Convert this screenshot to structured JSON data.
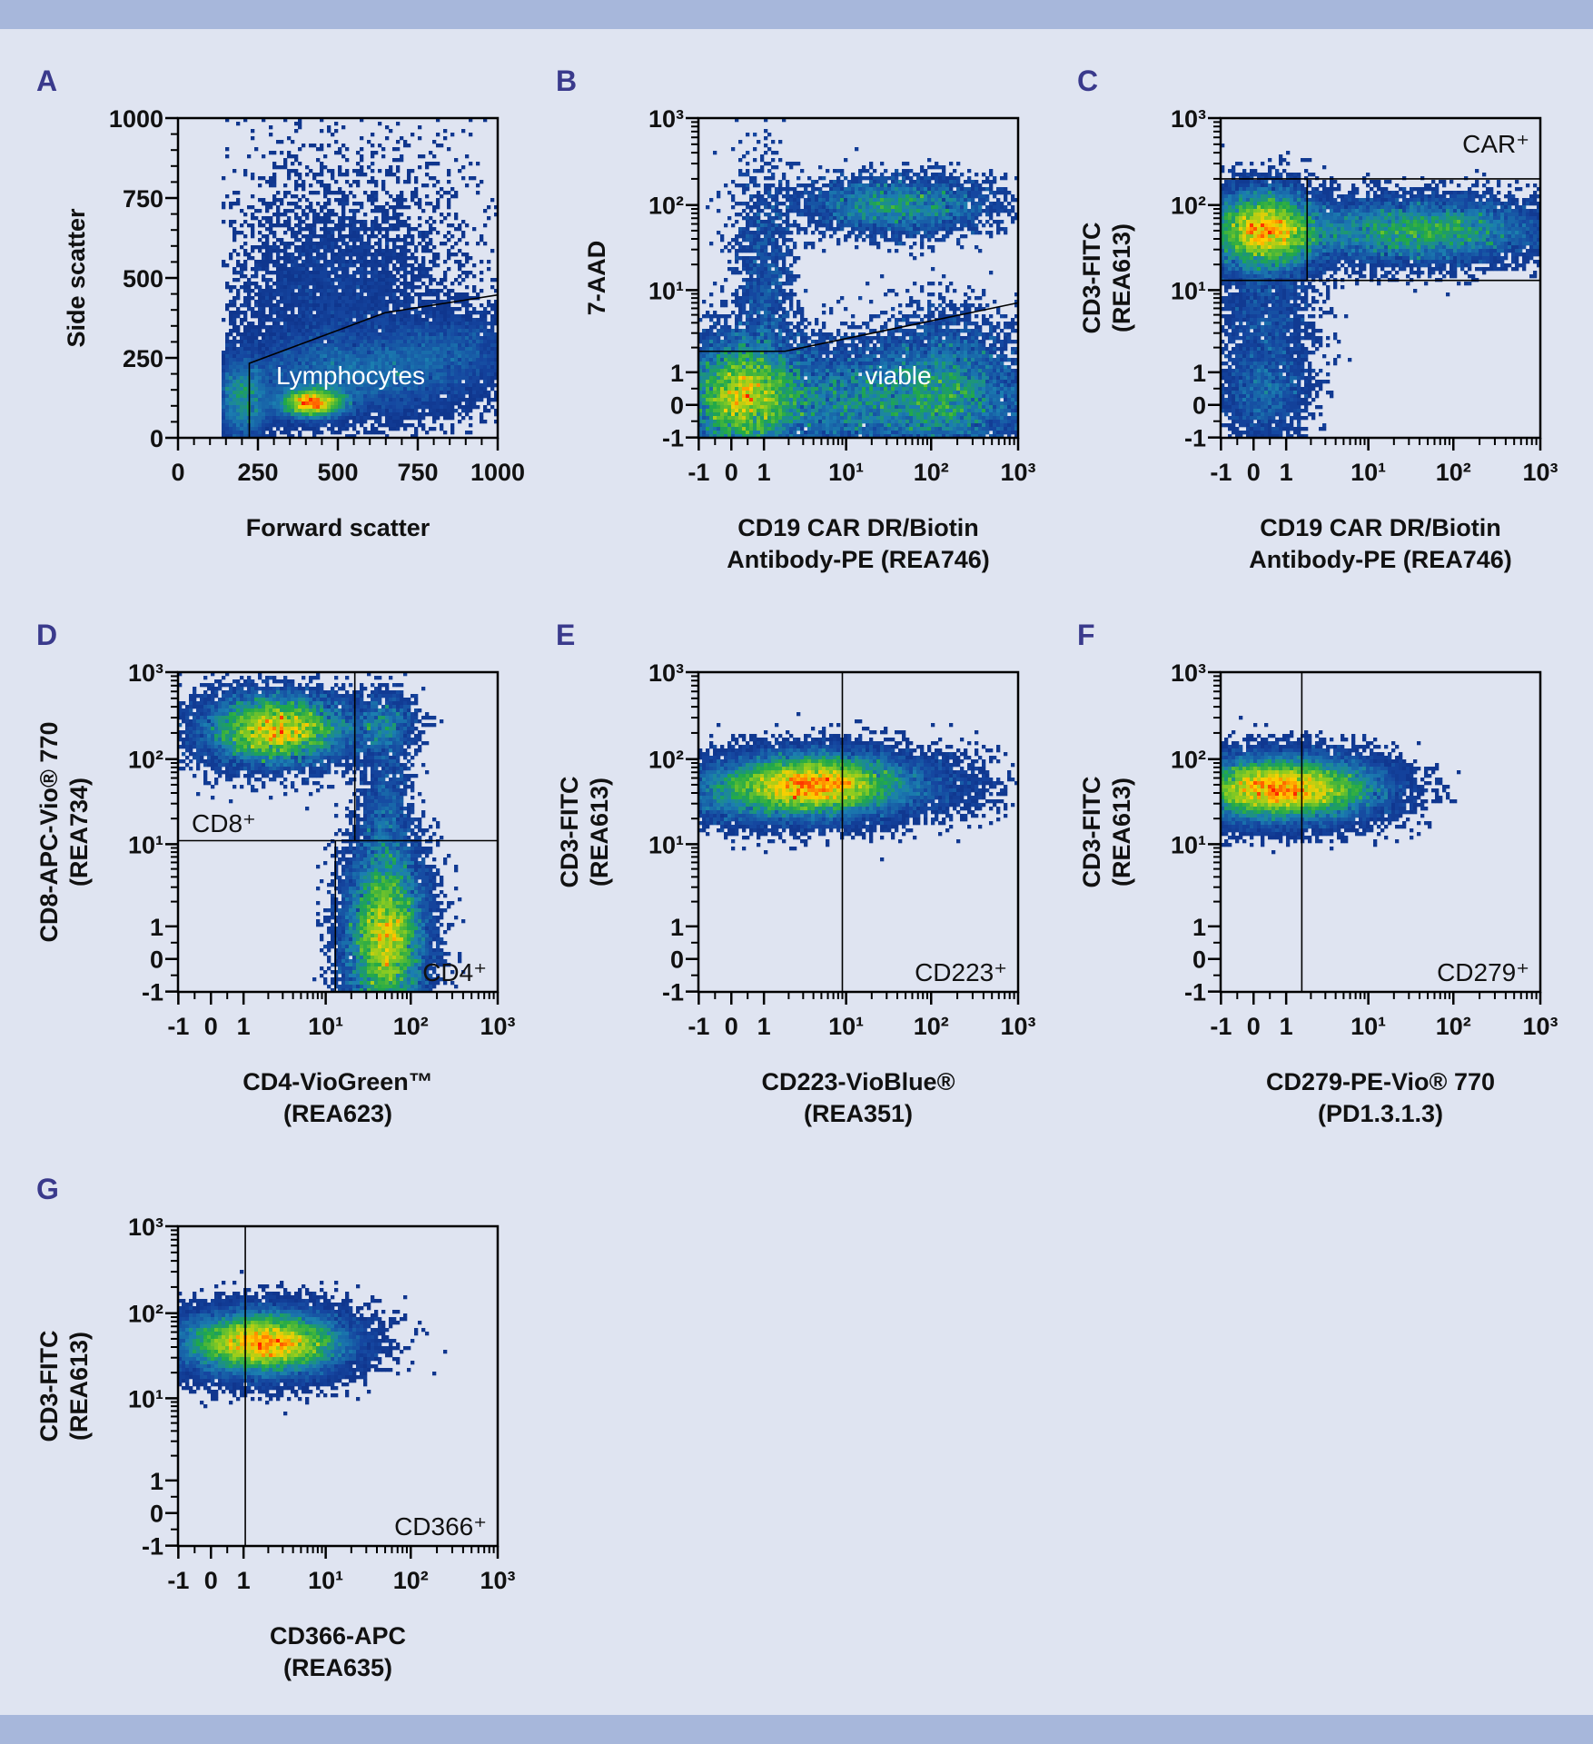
{
  "colors": {
    "background": "#dfe4f1",
    "band": "#a7b7db",
    "panel_letter": "#3a3a8c",
    "gate_line": "#000000",
    "density_scale": [
      "#0d2f86",
      "#1546a0",
      "#1b7fb0",
      "#1fa84a",
      "#8ccc20",
      "#ffd000",
      "#ff7a00",
      "#ff2000"
    ]
  },
  "chart_data": [
    {
      "panel": "A",
      "type": "scatter",
      "subtype": "density dot plot",
      "xlabel": [
        "Forward scatter"
      ],
      "ylabel": [
        "Side scatter"
      ],
      "xscale": "linear",
      "yscale": "linear",
      "xlim": [
        0,
        1000
      ],
      "ylim": [
        0,
        1000
      ],
      "xticks": {
        "values": [
          0,
          250,
          500,
          750,
          1000
        ],
        "labels": [
          "0",
          "250",
          "500",
          "750",
          "1000"
        ]
      },
      "yticks": {
        "values": [
          0,
          250,
          500,
          750,
          1000
        ],
        "labels": [
          "0",
          "250",
          "500",
          "750",
          "1000"
        ]
      },
      "x_threshold": 140,
      "gates": [
        {
          "label": "Lymphocytes",
          "label_color": "#ffffff",
          "lines": [
            [
              [
                223,
                0
              ],
              [
                223,
                233
              ],
              [
                647,
                391
              ],
              [
                1000,
                447
              ]
            ]
          ]
        }
      ],
      "populations": [
        {
          "center": [
            420,
            110
          ],
          "spread": [
            55,
            25
          ],
          "weight": 0.22
        },
        {
          "center": [
            560,
            200
          ],
          "spread": [
            200,
            70
          ],
          "weight": 0.33
        },
        {
          "center": [
            200,
            120
          ],
          "spread": [
            50,
            70
          ],
          "weight": 0.15
        },
        {
          "center": [
            480,
            420
          ],
          "spread": [
            160,
            150
          ],
          "weight": 0.12
        },
        {
          "center": [
            550,
            600
          ],
          "spread": [
            250,
            250
          ],
          "weight": 0.05
        },
        {
          "center": [
            850,
            280
          ],
          "spread": [
            120,
            60
          ],
          "weight": 0.1
        }
      ]
    },
    {
      "panel": "B",
      "type": "scatter",
      "subtype": "density dot plot",
      "xlabel": [
        "CD19 CAR DR/Biotin",
        "Antibody-PE (REA746)"
      ],
      "ylabel": [
        "7-AAD"
      ],
      "xscale": "biexponential",
      "yscale": "biexponential",
      "xlim": [
        -1,
        1000
      ],
      "ylim": [
        -1,
        1000
      ],
      "xticks": {
        "values": [
          -1,
          0,
          1,
          10,
          100,
          1000
        ],
        "labels": [
          "-1",
          "0",
          "1",
          "10¹",
          "10²",
          "10³"
        ]
      },
      "yticks": {
        "values": [
          -1,
          0,
          1,
          10,
          100,
          1000
        ],
        "labels": [
          "-1",
          "0",
          "1",
          "10¹",
          "10²",
          "10³"
        ]
      },
      "gates": [
        {
          "label": "viable",
          "label_color": "#ffffff",
          "lines": [
            [
              [
                -1,
                1.8
              ],
              [
                1.8,
                1.8
              ],
              [
                1000,
                7
              ]
            ]
          ]
        }
      ],
      "populations": [
        {
          "center": [
            0.3,
            0.3
          ],
          "spread": [
            0.35,
            0.35
          ],
          "weight": 0.3
        },
        {
          "center": [
            20,
            0.2
          ],
          "spread": [
            1.1,
            0.35
          ],
          "weight": 0.35
        },
        {
          "center": [
            40,
            100
          ],
          "spread": [
            0.6,
            0.18
          ],
          "weight": 0.12
        },
        {
          "center": [
            1,
            10
          ],
          "spread": [
            0.2,
            0.8
          ],
          "weight": 0.05
        },
        {
          "center": [
            150,
            0.5
          ],
          "spread": [
            0.4,
            0.5
          ],
          "weight": 0.12
        }
      ]
    },
    {
      "panel": "C",
      "type": "scatter",
      "subtype": "density dot plot",
      "xlabel": [
        "CD19 CAR DR/Biotin",
        "Antibody-PE (REA746)"
      ],
      "ylabel": [
        "CD3-FITC",
        "(REA613)"
      ],
      "xscale": "biexponential",
      "yscale": "biexponential",
      "xlim": [
        -1,
        1000
      ],
      "ylim": [
        -1,
        1000
      ],
      "xticks": {
        "values": [
          -1,
          0,
          1,
          10,
          100,
          1000
        ],
        "labels": [
          "-1",
          "0",
          "1",
          "10¹",
          "10²",
          "10³"
        ]
      },
      "yticks": {
        "values": [
          -1,
          0,
          1,
          10,
          100,
          1000
        ],
        "labels": [
          "-1",
          "0",
          "1",
          "10¹",
          "10²",
          "10³"
        ]
      },
      "gates": [
        {
          "label": "CAR⁺",
          "label_color": "#111111",
          "lines": [
            [
              [
                -1,
                200
              ],
              [
                1000,
                200
              ]
            ],
            [
              [
                -1,
                13
              ],
              [
                1000,
                13
              ]
            ],
            [
              [
                1.8,
                13
              ],
              [
                1.8,
                200
              ]
            ]
          ]
        }
      ],
      "populations": [
        {
          "center": [
            0.3,
            50
          ],
          "spread": [
            0.35,
            0.25
          ],
          "weight": 0.45
        },
        {
          "center": [
            40,
            50
          ],
          "spread": [
            0.8,
            0.2
          ],
          "weight": 0.35
        },
        {
          "center": [
            0.4,
            3
          ],
          "spread": [
            0.3,
            0.6
          ],
          "weight": 0.08
        },
        {
          "center": [
            0.3,
            0.3
          ],
          "spread": [
            0.25,
            0.25
          ],
          "weight": 0.04
        }
      ]
    },
    {
      "panel": "D",
      "type": "scatter",
      "subtype": "density dot plot",
      "xlabel": [
        "CD4-VioGreen™",
        "(REA623)"
      ],
      "ylabel": [
        "CD8-APC-Vio® 770",
        "(REA734)"
      ],
      "xscale": "biexponential",
      "yscale": "biexponential",
      "xlim": [
        -1,
        1000
      ],
      "ylim": [
        -1,
        1000
      ],
      "xticks": {
        "values": [
          -1,
          0,
          1,
          10,
          100,
          1000
        ],
        "labels": [
          "-1",
          "0",
          "1",
          "10¹",
          "10²",
          "10³"
        ]
      },
      "yticks": {
        "values": [
          -1,
          0,
          1,
          10,
          100,
          1000
        ],
        "labels": [
          "-1",
          "0",
          "1",
          "10¹",
          "10²",
          "10³"
        ]
      },
      "gates": [
        {
          "label": "CD8⁺",
          "label_color": "#111111",
          "lines": [
            [
              [
                -1,
                11
              ],
              [
                1000,
                11
              ]
            ],
            [
              [
                22,
                11
              ],
              [
                22,
                1000
              ]
            ]
          ]
        },
        {
          "label": "CD4⁺",
          "label_color": "#111111",
          "lines": [
            [
              [
                13,
                -1
              ],
              [
                13,
                11
              ]
            ]
          ]
        }
      ],
      "populations": [
        {
          "center": [
            2.5,
            220
          ],
          "spread": [
            0.45,
            0.22
          ],
          "weight": 0.4
        },
        {
          "center": [
            50,
            0.7
          ],
          "spread": [
            0.25,
            0.55
          ],
          "weight": 0.5
        },
        {
          "center": [
            50,
            250
          ],
          "spread": [
            0.2,
            0.2
          ],
          "weight": 0.04
        },
        {
          "center": [
            50,
            20
          ],
          "spread": [
            0.15,
            0.5
          ],
          "weight": 0.04
        }
      ]
    },
    {
      "panel": "E",
      "type": "scatter",
      "subtype": "density dot plot",
      "xlabel": [
        "CD223-VioBlue®",
        "(REA351)"
      ],
      "ylabel": [
        "CD3-FITC",
        "(REA613)"
      ],
      "xscale": "biexponential",
      "yscale": "biexponential",
      "xlim": [
        -1,
        1000
      ],
      "ylim": [
        -1,
        1000
      ],
      "xticks": {
        "values": [
          -1,
          0,
          1,
          10,
          100,
          1000
        ],
        "labels": [
          "-1",
          "0",
          "1",
          "10¹",
          "10²",
          "10³"
        ]
      },
      "yticks": {
        "values": [
          -1,
          0,
          1,
          10,
          100,
          1000
        ],
        "labels": [
          "-1",
          "0",
          "1",
          "10¹",
          "10²",
          "10³"
        ]
      },
      "gates": [
        {
          "label": "CD223⁺",
          "label_color": "#111111",
          "lines": [
            [
              [
                9,
                -1
              ],
              [
                9,
                1000
              ]
            ]
          ]
        }
      ],
      "populations": [
        {
          "center": [
            4,
            50
          ],
          "spread": [
            0.55,
            0.2
          ],
          "weight": 0.8
        },
        {
          "center": [
            40,
            50
          ],
          "spread": [
            0.6,
            0.2
          ],
          "weight": 0.08
        },
        {
          "center": [
            0.2,
            40
          ],
          "spread": [
            0.5,
            0.2
          ],
          "weight": 0.12
        }
      ]
    },
    {
      "panel": "F",
      "type": "scatter",
      "subtype": "density dot plot",
      "xlabel": [
        "CD279-PE-Vio® 770",
        "(PD1.3.1.3)"
      ],
      "ylabel": [
        "CD3-FITC",
        "(REA613)"
      ],
      "xscale": "biexponential",
      "yscale": "biexponential",
      "xlim": [
        -1,
        1000
      ],
      "ylim": [
        -1,
        1000
      ],
      "xticks": {
        "values": [
          -1,
          0,
          1,
          10,
          100,
          1000
        ],
        "labels": [
          "-1",
          "0",
          "1",
          "10¹",
          "10²",
          "10³"
        ]
      },
      "yticks": {
        "values": [
          -1,
          0,
          1,
          10,
          100,
          1000
        ],
        "labels": [
          "-1",
          "0",
          "1",
          "10¹",
          "10²",
          "10³"
        ]
      },
      "gates": [
        {
          "label": "CD279⁺",
          "label_color": "#111111",
          "lines": [
            [
              [
                1.55,
                -1
              ],
              [
                1.55,
                1000
              ]
            ]
          ]
        }
      ],
      "populations": [
        {
          "center": [
            0.7,
            45
          ],
          "spread": [
            0.55,
            0.2
          ],
          "weight": 0.9
        },
        {
          "center": [
            5,
            45
          ],
          "spread": [
            0.4,
            0.2
          ],
          "weight": 0.1
        }
      ]
    },
    {
      "panel": "G",
      "type": "scatter",
      "subtype": "density dot plot",
      "xlabel": [
        "CD366-APC",
        "(REA635)"
      ],
      "ylabel": [
        "CD3-FITC",
        "(REA613)"
      ],
      "xscale": "biexponential",
      "yscale": "biexponential",
      "xlim": [
        -1,
        1000
      ],
      "ylim": [
        -1,
        1000
      ],
      "xticks": {
        "values": [
          -1,
          0,
          1,
          10,
          100,
          1000
        ],
        "labels": [
          "-1",
          "0",
          "1",
          "10¹",
          "10²",
          "10³"
        ]
      },
      "yticks": {
        "values": [
          -1,
          0,
          1,
          10,
          100,
          1000
        ],
        "labels": [
          "-1",
          "0",
          "1",
          "10¹",
          "10²",
          "10³"
        ]
      },
      "gates": [
        {
          "label": "CD366⁺",
          "label_color": "#111111",
          "lines": [
            [
              [
                1.05,
                -1
              ],
              [
                1.05,
                1000
              ]
            ]
          ]
        }
      ],
      "populations": [
        {
          "center": [
            2,
            45
          ],
          "spread": [
            0.5,
            0.2
          ],
          "weight": 0.9
        },
        {
          "center": [
            0.3,
            45
          ],
          "spread": [
            0.4,
            0.2
          ],
          "weight": 0.1
        }
      ]
    }
  ]
}
